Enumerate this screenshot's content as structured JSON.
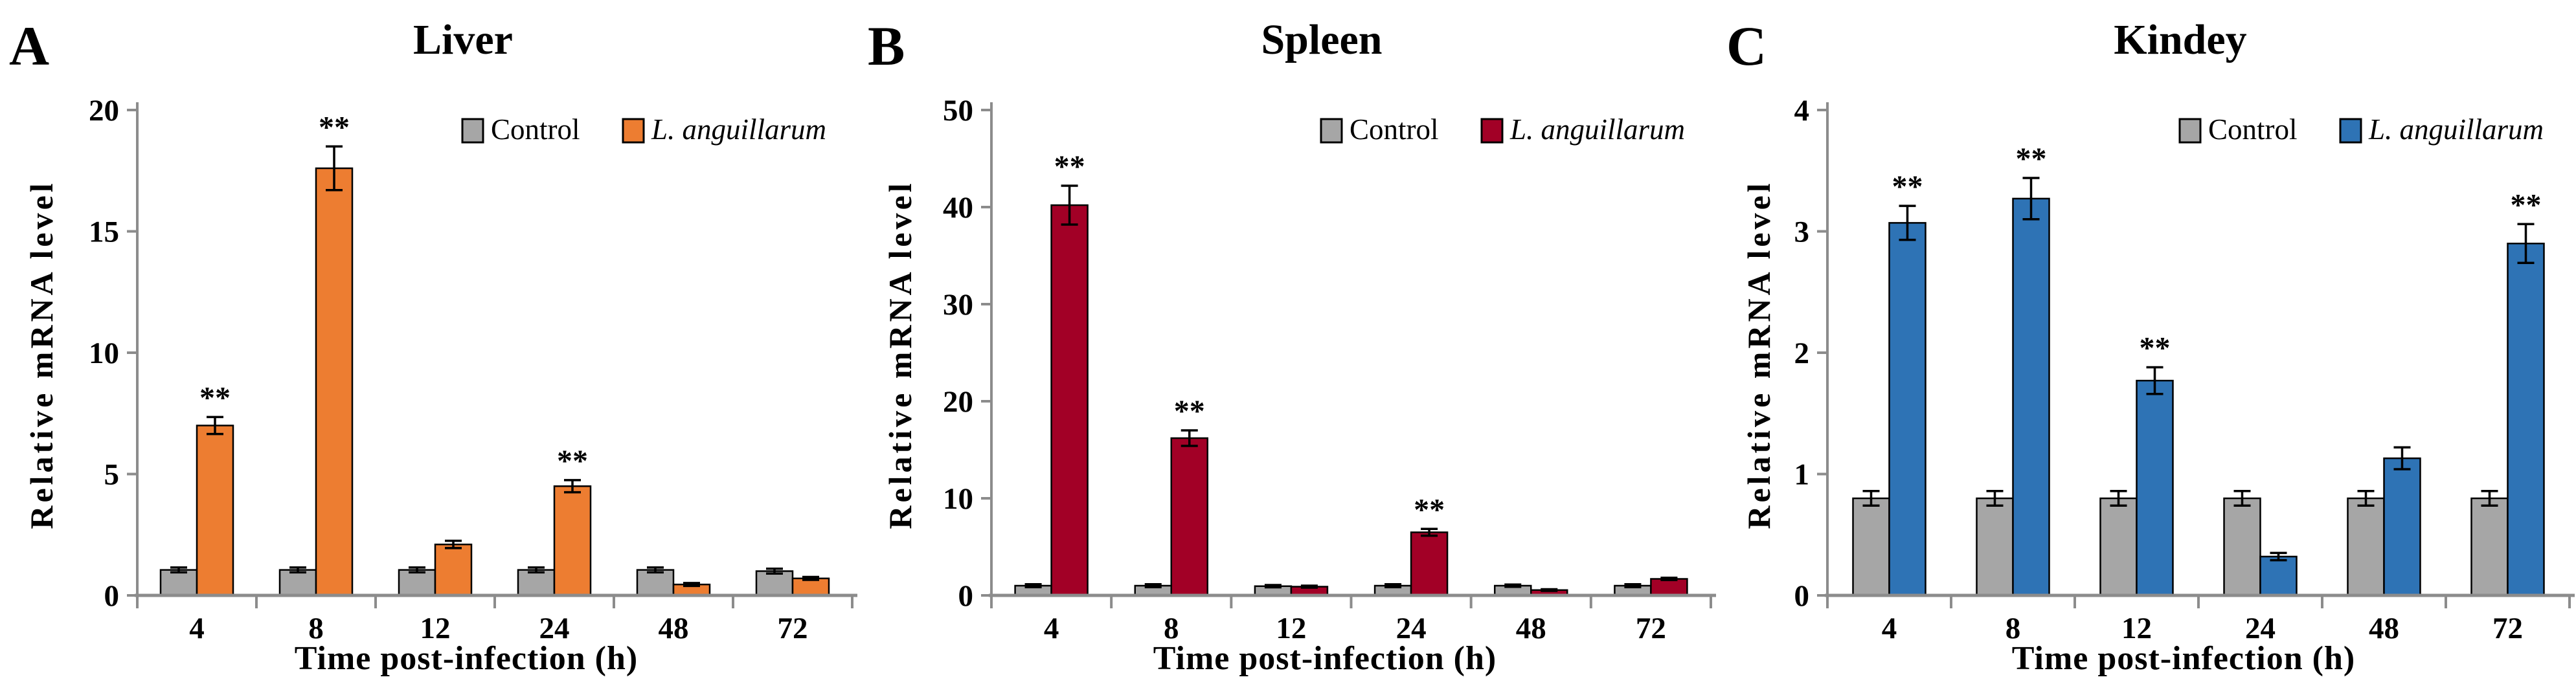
{
  "figure": {
    "background": "#FFFFFF",
    "axis_color": "#8C8C8C",
    "bar_outline_color": "#000000",
    "error_bar_color": "#000000",
    "significance_marker": "**"
  },
  "chart_data": [
    {
      "type": "bar",
      "panel_label": "A",
      "title": "Liver",
      "xlabel": "Time post-infection (h)",
      "ylabel": "Relative mRNA level",
      "categories": [
        "4",
        "8",
        "12",
        "24",
        "48",
        "72"
      ],
      "ylim": [
        0,
        20
      ],
      "yticks": [
        0,
        5,
        10,
        15,
        20
      ],
      "grid": false,
      "legend_position": "top-right",
      "series": [
        {
          "name": "Control",
          "italic": false,
          "color": "#A6A6A6",
          "values": [
            1.05,
            1.05,
            1.05,
            1.05,
            1.05,
            1.0
          ],
          "errors": [
            0.1,
            0.1,
            0.1,
            0.1,
            0.1,
            0.1
          ],
          "significance": [
            "",
            "",
            "",
            "",
            "",
            ""
          ]
        },
        {
          "name": "L. anguillarum",
          "italic": true,
          "color": "#ED7D31",
          "values": [
            7.0,
            17.6,
            2.1,
            4.5,
            0.45,
            0.7
          ],
          "errors": [
            0.35,
            0.9,
            0.15,
            0.25,
            0.06,
            0.06
          ],
          "significance": [
            "**",
            "**",
            "",
            "**",
            "",
            ""
          ]
        }
      ]
    },
    {
      "type": "bar",
      "panel_label": "B",
      "title": "Spleen",
      "xlabel": "Time post-infection (h)",
      "ylabel": "Relative mRNA level",
      "categories": [
        "4",
        "8",
        "12",
        "24",
        "48",
        "72"
      ],
      "ylim": [
        0,
        50
      ],
      "yticks": [
        0,
        10,
        20,
        30,
        40,
        50
      ],
      "grid": false,
      "legend_position": "top-right",
      "series": [
        {
          "name": "Control",
          "italic": false,
          "color": "#A6A6A6",
          "values": [
            1.0,
            1.0,
            0.95,
            1.0,
            1.0,
            1.0
          ],
          "errors": [
            0.15,
            0.15,
            0.12,
            0.15,
            0.12,
            0.15
          ],
          "significance": [
            "",
            "",
            "",
            "",
            "",
            ""
          ]
        },
        {
          "name": "L. anguillarum",
          "italic": true,
          "color": "#A20026",
          "values": [
            40.2,
            16.2,
            0.9,
            6.5,
            0.55,
            1.7
          ],
          "errors": [
            2.0,
            0.8,
            0.1,
            0.35,
            0.08,
            0.12
          ],
          "significance": [
            "**",
            "**",
            "",
            "**",
            "",
            ""
          ]
        }
      ]
    },
    {
      "type": "bar",
      "panel_label": "C",
      "title": "Kindey",
      "xlabel": "Time post-infection (h)",
      "ylabel": "Relative mRNA level",
      "categories": [
        "4",
        "8",
        "12",
        "24",
        "48",
        "72"
      ],
      "ylim": [
        0,
        4
      ],
      "yticks": [
        0,
        1,
        2,
        3,
        4
      ],
      "grid": false,
      "legend_position": "top-right",
      "series": [
        {
          "name": "Control",
          "italic": false,
          "color": "#A6A6A6",
          "values": [
            0.8,
            0.8,
            0.8,
            0.8,
            0.8,
            0.8
          ],
          "errors": [
            0.06,
            0.06,
            0.06,
            0.06,
            0.06,
            0.06
          ],
          "significance": [
            "",
            "",
            "",
            "",
            "",
            ""
          ]
        },
        {
          "name": "L. anguillarum",
          "italic": true,
          "color": "#2E73B5",
          "values": [
            3.07,
            3.27,
            1.77,
            0.32,
            1.13,
            2.9
          ],
          "errors": [
            0.14,
            0.17,
            0.11,
            0.03,
            0.09,
            0.16
          ],
          "significance": [
            "**",
            "**",
            "**",
            "",
            "",
            "**"
          ]
        }
      ]
    }
  ]
}
